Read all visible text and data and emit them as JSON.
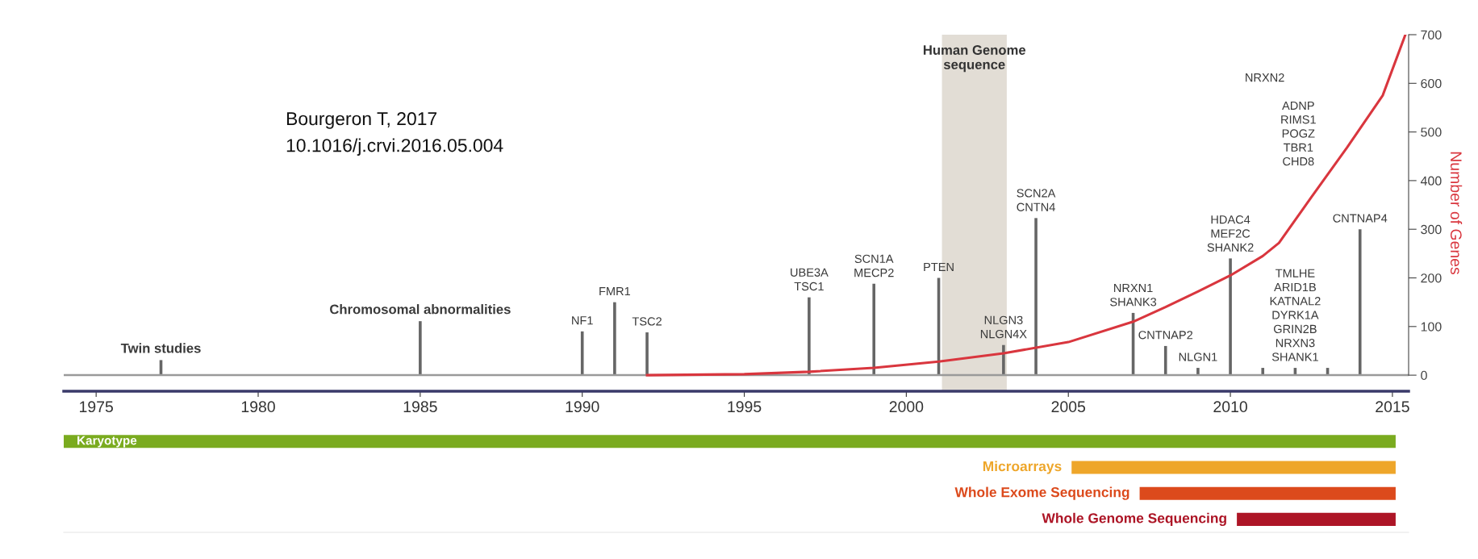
{
  "chart_data": [
    {
      "type": "line",
      "ylabel": "Number of Genes",
      "xlim": [
        1974,
        2015.5
      ],
      "xticks": [
        1975,
        1980,
        1985,
        1990,
        1995,
        2000,
        2005,
        2010,
        2015
      ],
      "ylim": [
        -33,
        700
      ],
      "yticks": [
        0,
        100,
        200,
        300,
        400,
        500,
        600,
        700
      ],
      "grid": false,
      "legend": false,
      "marker": "none",
      "line_style": "solid",
      "series": [
        {
          "type": "bar",
          "color": "#666666",
          "x": [
            1977,
            1985,
            1990,
            1991,
            1992,
            1997,
            1999,
            2001,
            2003,
            2004,
            2007,
            2008,
            2009,
            2010,
            2011,
            2012,
            2013,
            2014
          ],
          "values": [
            31,
            111,
            90,
            150,
            88,
            160,
            188,
            200,
            62,
            323,
            128,
            60,
            15,
            240,
            15,
            15,
            15,
            300
          ]
        },
        {
          "color": "#d9363e",
          "x": [
            1992,
            1995,
            1997,
            1999,
            2001,
            2003,
            2005,
            2007,
            2008,
            2009,
            2010,
            2011,
            2011.5,
            2012.5,
            2013.6,
            2014.7,
            2015.4
          ],
          "values": [
            0,
            2,
            7,
            15,
            28,
            45,
            68,
            110,
            140,
            172,
            205,
            245,
            272,
            366,
            468,
            575,
            700
          ]
        }
      ],
      "bands": [
        {
          "axis": "x",
          "from": 2001.1,
          "to": 2003.1,
          "label": "Human Genome\nsequence",
          "color": "#e2ddd5"
        }
      ],
      "ref_lines": [
        {
          "axis": "y",
          "value": 0,
          "color": "#9a9a9a"
        }
      ],
      "annotations": [
        "Bourgeron T, 2017",
        "10.1016/j.crvi.2016.05.004",
        "NRXN2",
        "ADNP\nRIMS1\nPOGZ\nTBR1\nCHD8",
        {
          "text": "Twin studies",
          "x": 1977,
          "y": 31
        },
        {
          "text": "Chromosomal abnormalities",
          "x": 1985,
          "y": 111
        },
        {
          "text": "NF1",
          "x": 1990,
          "y": 90
        },
        {
          "text": "FMR1",
          "x": 1991,
          "y": 150
        },
        {
          "text": "TSC2",
          "x": 1992,
          "y": 88
        },
        {
          "text": "UBE3A\nTSC1",
          "x": 1997,
          "y": 160
        },
        {
          "text": "SCN1A\nMECP2",
          "x": 1999,
          "y": 188
        },
        {
          "text": "PTEN",
          "x": 2001,
          "y": 200
        },
        {
          "text": "NLGN3\nNLGN4X",
          "x": 2003,
          "y": 62
        },
        {
          "text": "SCN2A\nCNTN4",
          "x": 2004,
          "y": 323
        },
        {
          "text": "NRXN1\nSHANK3",
          "x": 2007,
          "y": 128
        },
        {
          "text": "CNTNAP2",
          "x": 2008,
          "y": 60
        },
        {
          "text": "NLGN1",
          "x": 2009,
          "y": 15
        },
        {
          "text": "HDAC4\nMEF2C\nSHANK2",
          "x": 2010,
          "y": 240
        },
        {
          "text": "TMLHE\nARID1B\nKATNAL2\nDYRK1A\nGRIN2B\nNRXN3\nSHANK1",
          "x": 2012,
          "y": 15
        },
        {
          "text": "CNTNAP4",
          "x": 2014,
          "y": 300
        }
      ]
    },
    {
      "type": "bar",
      "orientation": "horizontal",
      "tick_labels": false,
      "xlim": [
        1974,
        2015.5
      ],
      "categories": [
        "Karyotype",
        "Microarrays",
        "Whole Exome Sequencing",
        "Whole Genome Sequencing"
      ],
      "base": [
        1973.3,
        2005.1,
        2007.2,
        2010.2
      ],
      "values": [
        41.8,
        10,
        7.9,
        4.9
      ],
      "colors": [
        "#7aab1f",
        "#eea62a",
        "#dc4a1c",
        "#ad1526"
      ]
    }
  ]
}
